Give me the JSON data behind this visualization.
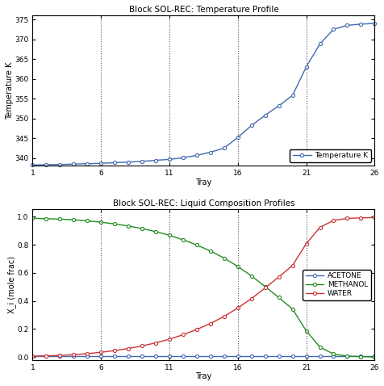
{
  "title_top": "Block SOL-REC: Temperature Profile",
  "title_bottom": "Block SOL-REC: Liquid Composition Profiles",
  "xlabel": "Tray",
  "ylabel_top": "Temperature K",
  "ylabel_bottom": "X_i (mole frac)",
  "trays": [
    1,
    2,
    3,
    4,
    5,
    6,
    7,
    8,
    9,
    10,
    11,
    12,
    13,
    14,
    15,
    16,
    17,
    18,
    19,
    20,
    21,
    22,
    23,
    24,
    25,
    26
  ],
  "temperature": [
    338.2,
    338.3,
    338.35,
    338.45,
    338.55,
    338.65,
    338.8,
    338.95,
    339.15,
    339.4,
    339.65,
    340.05,
    340.65,
    341.45,
    342.5,
    345.2,
    348.2,
    350.8,
    353.2,
    355.8,
    363.0,
    368.8,
    372.5,
    373.5,
    373.8,
    374.0
  ],
  "acetone": [
    0.005,
    0.005,
    0.005,
    0.005,
    0.005,
    0.005,
    0.005,
    0.005,
    0.005,
    0.005,
    0.005,
    0.005,
    0.005,
    0.005,
    0.005,
    0.005,
    0.005,
    0.005,
    0.005,
    0.005,
    0.005,
    0.005,
    0.005,
    0.005,
    0.005,
    0.005
  ],
  "methanol": [
    0.988,
    0.985,
    0.982,
    0.977,
    0.97,
    0.96,
    0.948,
    0.933,
    0.915,
    0.893,
    0.867,
    0.835,
    0.798,
    0.755,
    0.705,
    0.645,
    0.578,
    0.502,
    0.424,
    0.342,
    0.188,
    0.072,
    0.022,
    0.008,
    0.004,
    0.002
  ],
  "water": [
    0.007,
    0.01,
    0.013,
    0.018,
    0.025,
    0.035,
    0.047,
    0.062,
    0.08,
    0.102,
    0.128,
    0.16,
    0.197,
    0.24,
    0.29,
    0.35,
    0.417,
    0.493,
    0.571,
    0.653,
    0.807,
    0.923,
    0.973,
    0.987,
    0.991,
    0.993
  ],
  "vlines": [
    6,
    11,
    16,
    21,
    26
  ],
  "temp_ylim": [
    338,
    376
  ],
  "temp_yticks": [
    340,
    345,
    350,
    355,
    360,
    365,
    370,
    375
  ],
  "comp_ylim": [
    -0.02,
    1.05
  ],
  "comp_yticks": [
    0.0,
    0.2,
    0.4,
    0.6,
    0.8,
    1.0
  ],
  "xlim": [
    1,
    26
  ],
  "xticks": [
    1,
    6,
    11,
    16,
    21,
    26
  ],
  "xticklabels": [
    "1",
    "6",
    "11",
    "16",
    "21",
    "26"
  ],
  "color_temp": "#4169B0",
  "color_acetone": "#4169B0",
  "color_methanol": "#228B22",
  "color_water": "#CC3333",
  "bg_color": "#FFFFFF",
  "plot_bg": "#FFFFFF",
  "marker": "o",
  "markersize": 3,
  "linewidth": 1.0,
  "title_fontsize": 7.5,
  "label_fontsize": 7,
  "tick_fontsize": 6.5,
  "legend_fontsize": 6.5
}
